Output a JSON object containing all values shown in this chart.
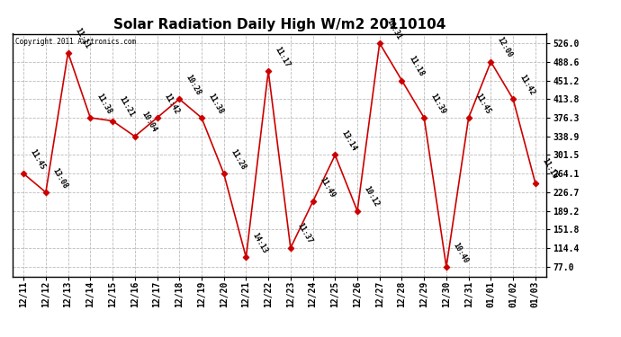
{
  "title": "Solar Radiation Daily High W/m2 20110104",
  "copyright": "Copyright 2011 Aartronics.com",
  "x_labels": [
    "12/11",
    "12/12",
    "12/13",
    "12/14",
    "12/15",
    "12/16",
    "12/17",
    "12/18",
    "12/19",
    "12/20",
    "12/21",
    "12/22",
    "12/23",
    "12/24",
    "12/25",
    "12/26",
    "12/27",
    "12/28",
    "12/29",
    "12/30",
    "12/31",
    "01/01",
    "01/02",
    "01/03"
  ],
  "y_values": [
    264.1,
    226.7,
    507.0,
    376.3,
    370.0,
    338.9,
    376.3,
    413.8,
    376.3,
    264.1,
    96.0,
    470.0,
    115.0,
    208.0,
    301.5,
    189.2,
    526.0,
    451.2,
    376.3,
    77.0,
    376.3,
    488.6,
    413.8,
    245.0
  ],
  "time_labels": [
    "11:45",
    "13:08",
    "11:11",
    "11:38",
    "11:21",
    "10:04",
    "11:42",
    "10:28",
    "11:38",
    "11:28",
    "14:13",
    "11:17",
    "11:37",
    "11:49",
    "13:14",
    "10:12",
    "10:31",
    "11:18",
    "11:39",
    "10:40",
    "11:45",
    "12:00",
    "11:42",
    "11:16"
  ],
  "y_ticks": [
    77.0,
    114.4,
    151.8,
    189.2,
    226.7,
    264.1,
    301.5,
    338.9,
    376.3,
    413.8,
    451.2,
    488.6,
    526.0
  ],
  "line_color": "#cc0000",
  "marker_color": "#cc0000",
  "background_color": "#ffffff",
  "grid_color": "#bbbbbb",
  "title_fontsize": 11,
  "tick_fontsize": 7,
  "annotation_fontsize": 6,
  "ylim": [
    58.0,
    545.0
  ]
}
